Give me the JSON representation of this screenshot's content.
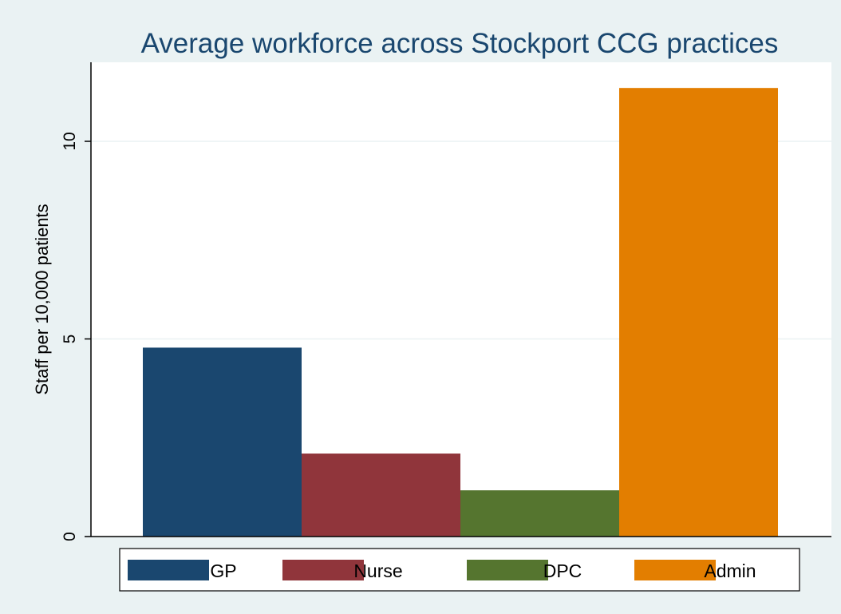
{
  "chart_data": {
    "type": "bar",
    "title": "Average workforce across Stockport CCG practices",
    "xlabel": "",
    "ylabel": "Staff per 10,000 patients",
    "ylim": [
      0,
      12
    ],
    "yticks": [
      0,
      5,
      10
    ],
    "ytick_labels": [
      "0",
      "5",
      "10"
    ],
    "grid": true,
    "legend_position": "bottom",
    "series": [
      {
        "name": "GP",
        "value": 4.78,
        "color": "#1a476f"
      },
      {
        "name": "Nurse",
        "value": 2.1,
        "color": "#90353b"
      },
      {
        "name": "DPC",
        "value": 1.17,
        "color": "#55752f"
      },
      {
        "name": "Admin",
        "value": 11.35,
        "color": "#e37e00"
      }
    ]
  },
  "colors": {
    "background": "#eaf2f3",
    "plot_background": "#ffffff",
    "gridline": "#eaf2f3",
    "title": "#1a476f"
  }
}
